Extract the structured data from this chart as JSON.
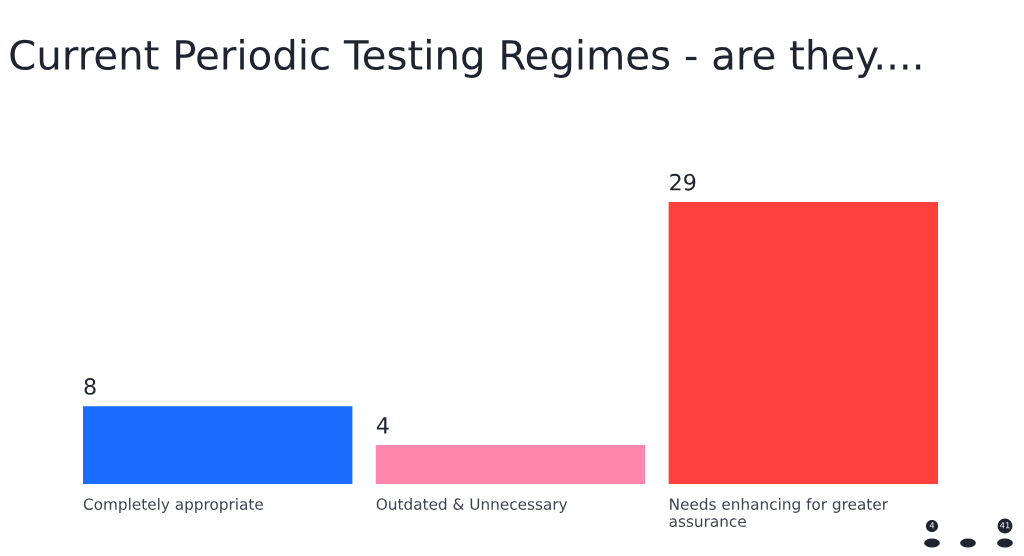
{
  "chart_data": {
    "type": "bar",
    "title": "Current Periodic Testing Regimes - are they....",
    "categories": [
      "Completely appropriate",
      "Outdated & Unnecessary",
      "Needs enhancing for greater assurance"
    ],
    "values": [
      8,
      4,
      29
    ],
    "colors": [
      "#196cff",
      "#ff87ae",
      "#ff403f"
    ],
    "data_labels": true,
    "annotations": [
      "4",
      "41"
    ]
  }
}
